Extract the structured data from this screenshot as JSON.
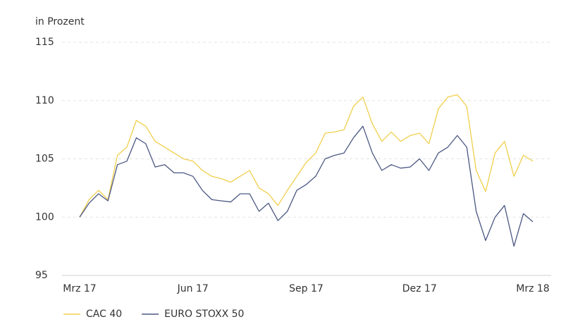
{
  "chart_data": {
    "type": "line",
    "y_label": "in Prozent",
    "x": [
      0,
      0.25,
      0.5,
      0.75,
      1,
      1.25,
      1.5,
      1.75,
      2,
      2.25,
      2.5,
      2.75,
      3,
      3.25,
      3.5,
      3.75,
      4,
      4.25,
      4.5,
      4.75,
      5,
      5.25,
      5.5,
      5.75,
      6,
      6.25,
      6.5,
      6.75,
      7,
      7.25,
      7.5,
      7.75,
      8,
      8.25,
      8.5,
      8.75,
      9,
      9.25,
      9.5,
      9.75,
      10,
      10.25,
      10.5,
      10.75,
      11,
      11.25,
      11.5,
      11.75,
      12
    ],
    "series": [
      {
        "name": "CAC 40",
        "color": "#f0cf4c",
        "values": [
          100.0,
          101.5,
          102.3,
          101.5,
          105.3,
          106.0,
          108.3,
          107.8,
          106.5,
          106.0,
          105.5,
          105.0,
          104.8,
          104.0,
          103.5,
          103.3,
          103.0,
          103.5,
          104.0,
          102.5,
          102.0,
          101.0,
          102.3,
          103.5,
          104.7,
          105.5,
          107.2,
          107.3,
          107.5,
          109.5,
          110.3,
          108.0,
          106.5,
          107.3,
          106.5,
          107.0,
          107.2,
          106.3,
          109.3,
          110.3,
          110.5,
          109.5,
          104.0,
          102.2,
          105.5,
          106.5,
          103.5,
          105.3,
          104.8
        ]
      },
      {
        "name": "EURO STOXX 50",
        "color": "#4b5782",
        "values": [
          100.0,
          101.2,
          102.0,
          101.4,
          104.5,
          104.8,
          106.8,
          106.3,
          104.3,
          104.5,
          103.8,
          103.8,
          103.5,
          102.3,
          101.5,
          101.4,
          101.3,
          102.0,
          102.0,
          100.5,
          101.2,
          99.7,
          100.5,
          102.3,
          102.8,
          103.5,
          105.0,
          105.3,
          105.5,
          106.8,
          107.8,
          105.5,
          104.0,
          104.5,
          104.2,
          104.3,
          105.0,
          104.0,
          105.5,
          106.0,
          107.0,
          106.0,
          100.5,
          98.0,
          100.0,
          101.0,
          97.5,
          100.3,
          99.6
        ]
      }
    ],
    "xlim": [
      0,
      12
    ],
    "xticks": [
      {
        "value": 0,
        "label": "Mrz 17"
      },
      {
        "value": 3,
        "label": "Jun 17"
      },
      {
        "value": 6,
        "label": "Sep 17"
      },
      {
        "value": 9,
        "label": "Dez 17"
      },
      {
        "value": 12,
        "label": "Mrz 18"
      }
    ],
    "ylim": [
      95,
      115
    ],
    "yticks": [
      95,
      100,
      105,
      110,
      115
    ],
    "grid": true,
    "legend": "bottom-left"
  }
}
